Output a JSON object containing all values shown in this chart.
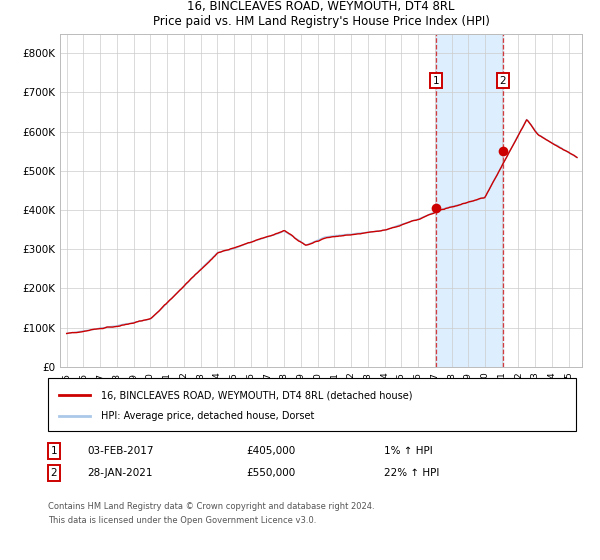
{
  "title": "16, BINCLEAVES ROAD, WEYMOUTH, DT4 8RL",
  "subtitle": "Price paid vs. HM Land Registry's House Price Index (HPI)",
  "legend_line1": "16, BINCLEAVES ROAD, WEYMOUTH, DT4 8RL (detached house)",
  "legend_line2": "HPI: Average price, detached house, Dorset",
  "annotation1_label": "1",
  "annotation1_date": "03-FEB-2017",
  "annotation1_price": "£405,000",
  "annotation1_hpi": "1% ↑ HPI",
  "annotation2_label": "2",
  "annotation2_date": "28-JAN-2021",
  "annotation2_price": "£550,000",
  "annotation2_hpi": "22% ↑ HPI",
  "point1_x": 2017.08,
  "point1_y": 405000,
  "point2_x": 2021.07,
  "point2_y": 550000,
  "hpi_color": "#aac8e8",
  "price_color": "#cc0000",
  "shade_color": "#ddeeff",
  "grid_color": "#cccccc",
  "footnote_line1": "Contains HM Land Registry data © Crown copyright and database right 2024.",
  "footnote_line2": "This data is licensed under the Open Government Licence v3.0.",
  "ylim": [
    0,
    850000
  ],
  "xlim_start": 1994.6,
  "xlim_end": 2025.8,
  "yticks": [
    0,
    100000,
    200000,
    300000,
    400000,
    500000,
    600000,
    700000,
    800000
  ],
  "ytick_labels": [
    "£0",
    "£100K",
    "£200K",
    "£300K",
    "£400K",
    "£500K",
    "£600K",
    "£700K",
    "£800K"
  ]
}
